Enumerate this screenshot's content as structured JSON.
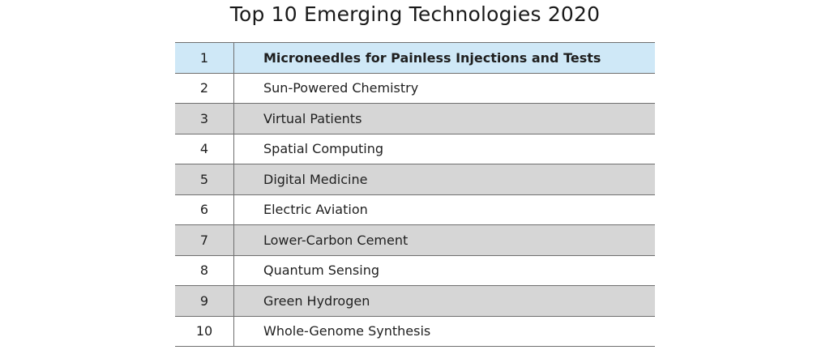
{
  "title": "Top 10 Emerging Technologies 2020",
  "colors": {
    "highlight_row": "#cfe8f7",
    "striped_row": "#d6d6d6",
    "plain_row": "#ffffff",
    "rule": "#6f6f6f"
  },
  "rows": [
    {
      "rank": "1",
      "technology": "Microneedles for Painless Injections and Tests",
      "style": "highlight"
    },
    {
      "rank": "2",
      "technology": "Sun-Powered Chemistry",
      "style": "white"
    },
    {
      "rank": "3",
      "technology": "Virtual Patients",
      "style": "gray"
    },
    {
      "rank": "4",
      "technology": "Spatial Computing",
      "style": "white"
    },
    {
      "rank": "5",
      "technology": "Digital Medicine",
      "style": "gray"
    },
    {
      "rank": "6",
      "technology": "Electric Aviation",
      "style": "white"
    },
    {
      "rank": "7",
      "technology": "Lower-Carbon Cement",
      "style": "gray"
    },
    {
      "rank": "8",
      "technology": "Quantum Sensing",
      "style": "white"
    },
    {
      "rank": "9",
      "technology": "Green Hydrogen",
      "style": "gray"
    },
    {
      "rank": "10",
      "technology": "Whole-Genome Synthesis",
      "style": "white"
    }
  ]
}
